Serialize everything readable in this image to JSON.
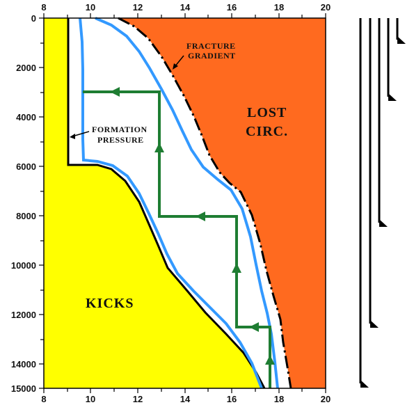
{
  "chart_data": {
    "type": "diagram",
    "x_ticks": [
      "8",
      "10",
      "12",
      "14",
      "16",
      "18",
      "20"
    ],
    "y_ticks": [
      "0",
      "2000",
      "4000",
      "6000",
      "8000",
      "10000",
      "12000",
      "14000",
      "15000"
    ],
    "xlim": [
      8,
      20
    ],
    "ylim": [
      0,
      15000
    ],
    "labels": {
      "fracture_1": "FRACTURE",
      "fracture_2": "GRADIENT",
      "formation_1": "FORMATION",
      "formation_2": "PRESSURE",
      "lost_1": "LOST",
      "lost_2": "CIRC.",
      "kicks": "KICKS"
    },
    "regions": {
      "kicks_color": "#ffff00",
      "lost_circulation_color": "#ff6a1f",
      "safety_margin_color": "#3399ff",
      "casing_design_color": "#1e7d32"
    },
    "casing_design_steps": [
      {
        "depth": 3000,
        "mud_weight_from": 12.9,
        "mud_weight_to": 9.6
      },
      {
        "depth": 8000,
        "mud_weight_from": 16.2,
        "mud_weight_to": 12.9
      },
      {
        "depth": 12500,
        "mud_weight_from": 17.6,
        "mud_weight_to": 16.2
      }
    ],
    "casing_shoe_depths": [
      1000,
      3300,
      8500,
      12500,
      15000
    ]
  }
}
